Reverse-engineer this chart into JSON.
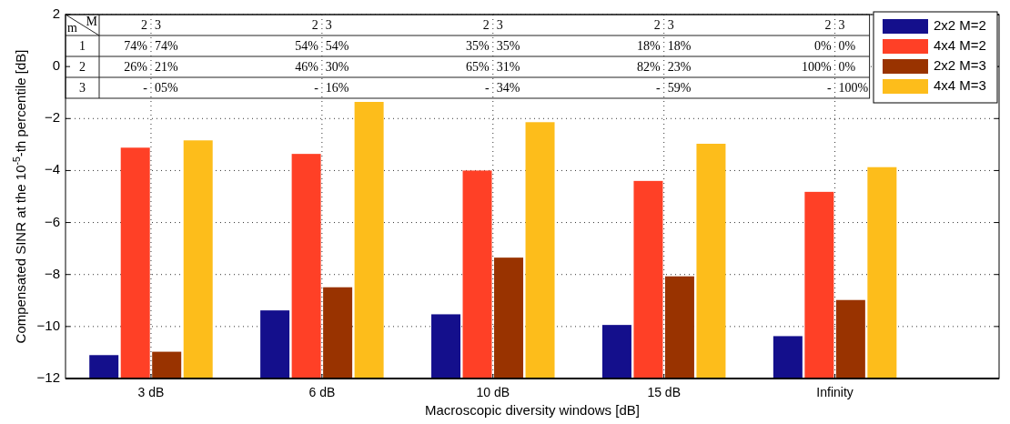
{
  "chart_data": {
    "type": "bar",
    "xlabel": "Macroscopic diversity windows [dB]",
    "ylabel": "Compensated SINR at the 10$^{-5}$-th percentile [dB]",
    "categories": [
      "3 dB",
      "6 dB",
      "10 dB",
      "15 dB",
      "Infinity"
    ],
    "series": [
      {
        "name": "2x2 M=2",
        "color": "#140f8c",
        "base": [
          -12,
          -12,
          -12,
          -12,
          -12
        ],
        "values": [
          0.9,
          2.62,
          2.47,
          2.06,
          1.63
        ]
      },
      {
        "name": "4x4 M=2",
        "color": "#ff4026",
        "base": [
          -12,
          -12,
          -12,
          -12,
          -12
        ],
        "values": [
          8.88,
          8.64,
          8.0,
          7.6,
          7.18
        ]
      },
      {
        "name": "2x2 M=3",
        "color": "#993300",
        "base": [
          -12,
          -12,
          -12,
          -12,
          -12
        ],
        "values": [
          1.03,
          3.51,
          4.65,
          3.93,
          3.02
        ]
      },
      {
        "name": "4x4 M=3",
        "color": "#fdbd1b",
        "base": [
          -12,
          -12,
          -12,
          -12,
          -12
        ],
        "values": [
          9.16,
          10.64,
          9.86,
          9.03,
          8.13
        ]
      }
    ],
    "ylim": [
      -12,
      2
    ],
    "yticks": [
      -12,
      -10,
      -8,
      -6,
      -4,
      -2,
      0,
      2
    ],
    "grid": true,
    "legend": "top right",
    "annotations": [
      "m",
      "M",
      "2",
      "3",
      "2",
      "3",
      "2",
      "3",
      "2",
      "3",
      "2",
      "3",
      "1",
      "74%",
      "74%",
      "54%",
      "54%",
      "35%",
      "35%",
      "18%",
      "18%",
      "0%",
      "0%",
      "2",
      "26%",
      "21%",
      "46%",
      "30%",
      "65%",
      "31%",
      "82%",
      "23%",
      "100%",
      "0%",
      "3",
      "-",
      "05%",
      "-",
      "16%",
      "-",
      "34%",
      "-",
      "59%",
      "-",
      "100%"
    ]
  }
}
